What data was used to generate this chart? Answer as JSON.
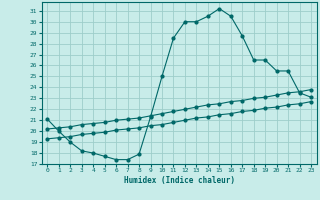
{
  "xlabel": "Humidex (Indice chaleur)",
  "bg_color": "#c8ece9",
  "grid_color": "#9dceca",
  "line_color": "#006868",
  "spine_color": "#006868",
  "xlim": [
    -0.5,
    23.5
  ],
  "ylim": [
    17,
    31.8
  ],
  "yticks": [
    17,
    18,
    19,
    20,
    21,
    22,
    23,
    24,
    25,
    26,
    27,
    28,
    29,
    30,
    31
  ],
  "xticks": [
    0,
    1,
    2,
    3,
    4,
    5,
    6,
    7,
    8,
    9,
    10,
    11,
    12,
    13,
    14,
    15,
    16,
    17,
    18,
    19,
    20,
    21,
    22,
    23
  ],
  "line1_x": [
    0,
    1,
    2,
    3,
    4,
    5,
    6,
    7,
    8,
    9,
    10,
    11,
    12,
    13,
    14,
    15,
    16,
    17,
    18,
    19,
    20,
    21,
    22,
    23
  ],
  "line1_y": [
    21.1,
    20.0,
    19.0,
    18.2,
    18.0,
    17.7,
    17.4,
    17.4,
    17.9,
    21.3,
    25.0,
    28.5,
    30.0,
    30.0,
    30.5,
    31.2,
    30.5,
    28.7,
    26.5,
    26.5,
    25.5,
    25.5,
    23.5,
    23.1
  ],
  "line2_x": [
    0,
    1,
    2,
    3,
    4,
    5,
    6,
    7,
    8,
    9,
    10,
    11,
    12,
    13,
    14,
    15,
    16,
    17,
    18,
    19,
    20,
    21,
    22,
    23
  ],
  "line2_y": [
    20.2,
    20.3,
    20.4,
    20.6,
    20.7,
    20.8,
    21.0,
    21.1,
    21.2,
    21.4,
    21.6,
    21.8,
    22.0,
    22.2,
    22.4,
    22.5,
    22.7,
    22.8,
    23.0,
    23.1,
    23.3,
    23.5,
    23.6,
    23.8
  ],
  "line3_x": [
    0,
    1,
    2,
    3,
    4,
    5,
    6,
    7,
    8,
    9,
    10,
    11,
    12,
    13,
    14,
    15,
    16,
    17,
    18,
    19,
    20,
    21,
    22,
    23
  ],
  "line3_y": [
    19.3,
    19.4,
    19.5,
    19.7,
    19.8,
    19.9,
    20.1,
    20.2,
    20.3,
    20.5,
    20.6,
    20.8,
    21.0,
    21.2,
    21.3,
    21.5,
    21.6,
    21.8,
    21.9,
    22.1,
    22.2,
    22.4,
    22.5,
    22.7
  ]
}
